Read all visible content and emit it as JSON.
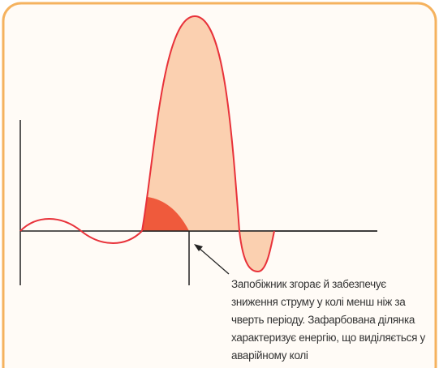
{
  "caption": [
    "Запобіжник згорає й забезпечує",
    "зниження струму у колі менш ніж за",
    "чверть періоду. Зафарбована ділянка",
    "характеризує енергію, що виділяється у",
    "аварійному колі"
  ]
}
